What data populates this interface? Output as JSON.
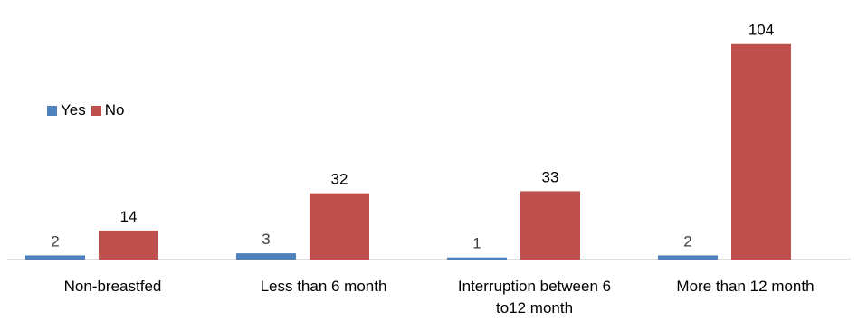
{
  "chart_data": {
    "type": "bar",
    "title": "",
    "xlabel": "",
    "ylabel": "",
    "ylim": [
      0,
      110
    ],
    "grid": false,
    "legend_position": "top-left",
    "categories": [
      [
        "Non-breastfed"
      ],
      [
        "Less than 6 month"
      ],
      [
        "Interruption between 6",
        "to12 month"
      ],
      [
        "More than 12 month"
      ]
    ],
    "series": [
      {
        "name": "Yes",
        "color": "#4f81bd",
        "values": [
          2,
          3,
          1,
          2
        ]
      },
      {
        "name": "No",
        "color": "#c0504d",
        "values": [
          14,
          32,
          33,
          104
        ]
      }
    ]
  }
}
